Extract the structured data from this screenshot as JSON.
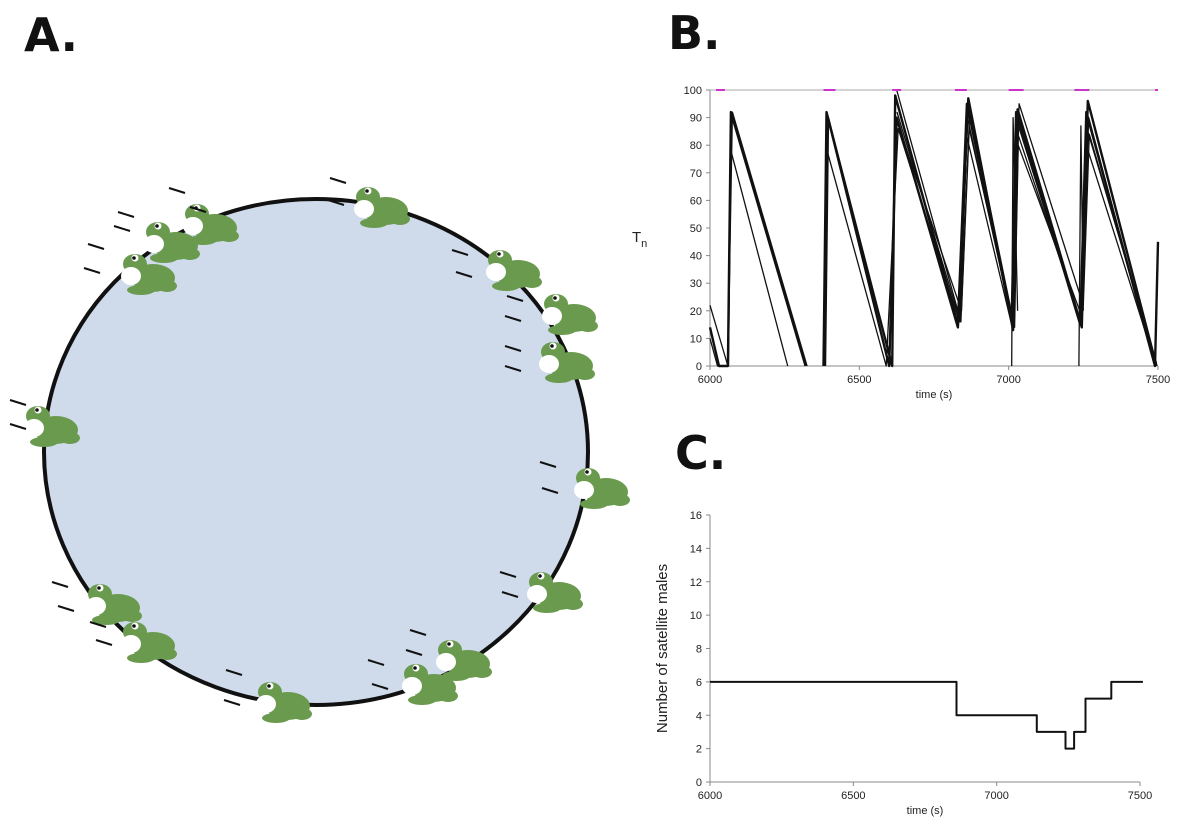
{
  "panels": {
    "a_label": "A.",
    "b_label": "B.",
    "c_label": "C."
  },
  "colors": {
    "pond_fill": "#cfdbeb",
    "pond_stroke": "#111111",
    "frog_green": "#6a9a4e",
    "frog_belly": "#ffffff",
    "line_black": "#111111",
    "marker_magenta": "#cc33cc"
  },
  "chart_data": [
    {
      "type": "line",
      "panel": "B",
      "xlabel": "time (s)",
      "ylabel": "T",
      "ylabel_subscript": "n",
      "xlim": [
        6000,
        7500
      ],
      "ylim": [
        0,
        100
      ],
      "x_ticks": [
        6000,
        6500,
        7000,
        7500
      ],
      "y_ticks": [
        0,
        10,
        20,
        30,
        40,
        50,
        60,
        70,
        80,
        90,
        100
      ],
      "call_markers": [
        {
          "start": 6020,
          "end": 6050
        },
        {
          "start": 6380,
          "end": 6420
        },
        {
          "start": 6610,
          "end": 6640
        },
        {
          "start": 6820,
          "end": 6860
        },
        {
          "start": 7000,
          "end": 7050
        },
        {
          "start": 7220,
          "end": 7270
        },
        {
          "start": 7490,
          "end": 7500
        }
      ],
      "series": [
        {
          "values": [
            [
              6000,
              14
            ],
            [
              6030,
              0
            ],
            [
              6060,
              0
            ],
            [
              6070,
              92
            ],
            [
              6320,
              0
            ]
          ]
        },
        {
          "values": [
            [
              6000,
              10
            ],
            [
              6025,
              0
            ],
            [
              6060,
              0
            ],
            [
              6075,
              92
            ],
            [
              6325,
              0
            ]
          ]
        },
        {
          "values": [
            [
              6000,
              22
            ],
            [
              6060,
              0
            ],
            [
              6062,
              0
            ],
            [
              6070,
              78
            ],
            [
              6260,
              0
            ]
          ]
        },
        {
          "values": [
            [
              6380,
              0
            ],
            [
              6390,
              92
            ],
            [
              6610,
              0
            ],
            [
              6620,
              98
            ],
            [
              6830,
              15
            ],
            [
              6860,
              95
            ],
            [
              7010,
              17
            ],
            [
              7025,
              92
            ],
            [
              7240,
              15
            ],
            [
              7260,
              92
            ],
            [
              7490,
              0
            ],
            [
              7500,
              45
            ]
          ]
        },
        {
          "values": [
            [
              6385,
              0
            ],
            [
              6395,
              90
            ],
            [
              6600,
              0
            ],
            [
              6625,
              90
            ],
            [
              6830,
              14
            ],
            [
              6865,
              97
            ],
            [
              7015,
              13
            ],
            [
              7030,
              93
            ],
            [
              7245,
              14
            ],
            [
              7265,
              96
            ],
            [
              7495,
              0
            ]
          ]
        },
        {
          "values": [
            [
              6385,
              0
            ],
            [
              6392,
              78
            ],
            [
              6590,
              0
            ],
            [
              6630,
              86
            ],
            [
              6835,
              16
            ],
            [
              6860,
              83
            ],
            [
              7012,
              14
            ],
            [
              7028,
              85
            ],
            [
              7242,
              16
            ],
            [
              7262,
              86
            ],
            [
              7495,
              1
            ]
          ]
        },
        {
          "values": [
            [
              6625,
              100
            ],
            [
              6840,
              16
            ],
            [
              6870,
              93
            ],
            [
              7020,
              14
            ],
            [
              7032,
              80
            ],
            [
              7245,
              18
            ],
            [
              7268,
              90
            ],
            [
              7490,
              0
            ]
          ]
        },
        {
          "values": [
            [
              6628,
              88
            ],
            [
              6842,
              20
            ],
            [
              6868,
              86
            ],
            [
              7018,
              15
            ],
            [
              7035,
              95
            ],
            [
              7250,
              22
            ],
            [
              7270,
              84
            ],
            [
              7492,
              2
            ]
          ]
        },
        {
          "values": [
            [
              6626,
              92
            ],
            [
              6838,
              16
            ],
            [
              6862,
              90
            ],
            [
              7016,
              14
            ],
            [
              7030,
              88
            ],
            [
              7244,
              14
            ],
            [
              7266,
              78
            ],
            [
              7494,
              0
            ]
          ]
        },
        {
          "values": [
            [
              7010,
              0
            ],
            [
              7015,
              90
            ],
            [
              7030,
              20
            ]
          ]
        },
        {
          "values": [
            [
              7235,
              0
            ],
            [
              7242,
              87
            ],
            [
              7250,
              20
            ]
          ]
        }
      ]
    },
    {
      "type": "line",
      "panel": "C",
      "xlabel": "time (s)",
      "ylabel": "Number of satellite males",
      "xlim": [
        6000,
        7500
      ],
      "ylim": [
        0,
        16
      ],
      "x_ticks": [
        6000,
        6500,
        7000,
        7500
      ],
      "y_ticks": [
        0,
        2,
        4,
        6,
        8,
        10,
        12,
        14,
        16
      ],
      "series": [
        {
          "step": true,
          "values": [
            [
              6000,
              6
            ],
            [
              6860,
              6
            ],
            [
              6860,
              4
            ],
            [
              7140,
              4
            ],
            [
              7140,
              3
            ],
            [
              7240,
              3
            ],
            [
              7240,
              2
            ],
            [
              7270,
              2
            ],
            [
              7270,
              3
            ],
            [
              7310,
              3
            ],
            [
              7310,
              5
            ],
            [
              7400,
              5
            ],
            [
              7400,
              6
            ],
            [
              7510,
              6
            ]
          ]
        }
      ]
    }
  ],
  "diagram": {
    "description_items": [
      "frog",
      "pond"
    ],
    "frogs": [
      {
        "id": 1,
        "calling": true
      },
      {
        "id": 2,
        "calling": true
      },
      {
        "id": 3,
        "calling": true
      },
      {
        "id": 4,
        "calling": true
      },
      {
        "id": 5,
        "calling": true
      },
      {
        "id": 6,
        "calling": false
      },
      {
        "id": 7,
        "calling": true
      },
      {
        "id": 8,
        "calling": true
      },
      {
        "id": 9,
        "calling": true
      },
      {
        "id": 10,
        "calling": true
      },
      {
        "id": 11,
        "calling": true
      },
      {
        "id": 12,
        "calling": true
      },
      {
        "id": 13,
        "calling": true
      },
      {
        "id": 14,
        "calling": true
      },
      {
        "id": 15,
        "calling": true
      },
      {
        "id": 16,
        "calling": true
      }
    ]
  }
}
